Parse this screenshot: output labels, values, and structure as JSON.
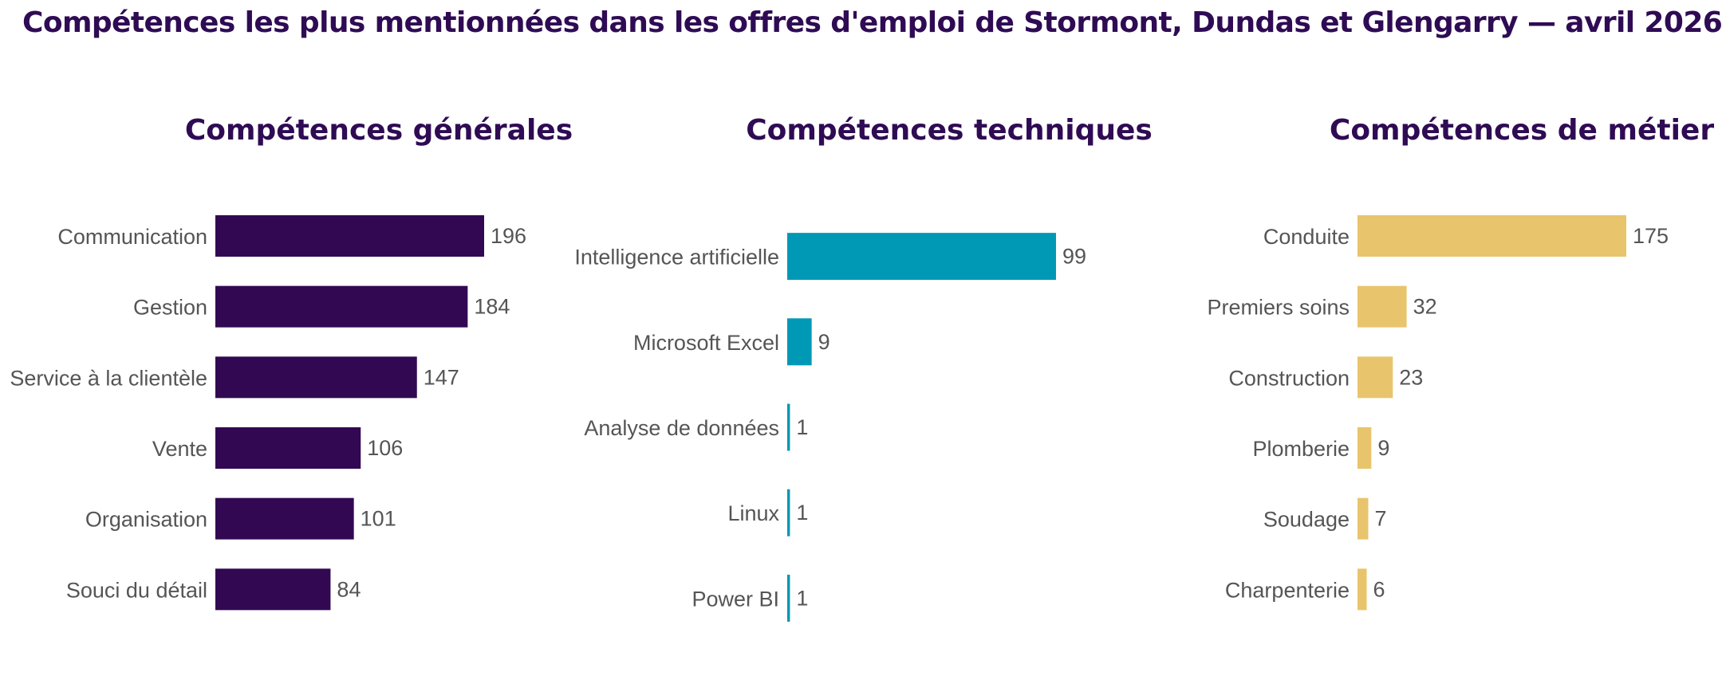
{
  "title": "Compétences les plus mentionnées dans les offres d'emploi de Stormont, Dundas et Glengarry — avril 2026",
  "chart_data": [
    {
      "type": "bar",
      "orientation": "horizontal",
      "title": "Compétences générales",
      "color": "#330852",
      "categories": [
        "Communication",
        "Gestion",
        "Service à la clientèle",
        "Vente",
        "Organisation",
        "Souci du détail"
      ],
      "values": [
        196,
        184,
        147,
        106,
        101,
        84
      ],
      "xlim": [
        0,
        196
      ],
      "grid": false,
      "data_labels": true
    },
    {
      "type": "bar",
      "orientation": "horizontal",
      "title": "Compétences techniques",
      "color": "#0099b5",
      "categories": [
        "Intelligence artificielle",
        "Microsoft Excel",
        "Analyse de données",
        "Linux",
        "Power BI"
      ],
      "values": [
        99,
        9,
        1,
        1,
        1
      ],
      "xlim": [
        0,
        99
      ],
      "grid": false,
      "data_labels": true
    },
    {
      "type": "bar",
      "orientation": "horizontal",
      "title": "Compétences de métier",
      "color": "#e8c46c",
      "categories": [
        "Conduite",
        "Premiers soins",
        "Construction",
        "Plomberie",
        "Soudage",
        "Charpenterie"
      ],
      "values": [
        175,
        32,
        23,
        9,
        7,
        6
      ],
      "xlim": [
        0,
        175
      ],
      "grid": false,
      "data_labels": true
    }
  ]
}
